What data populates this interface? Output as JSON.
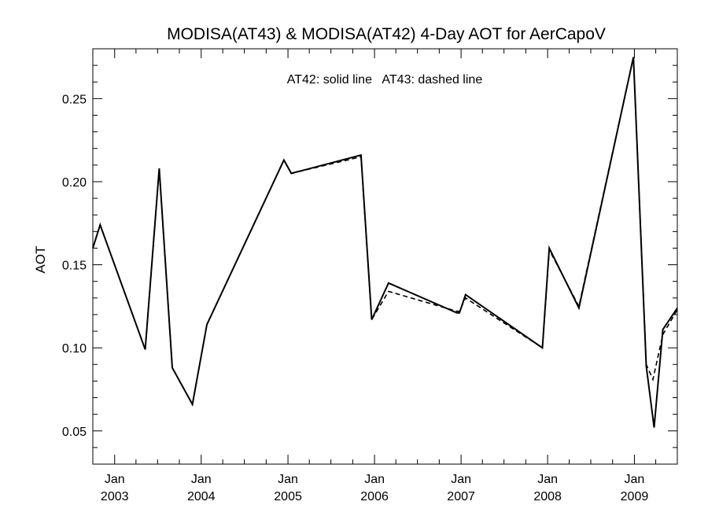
{
  "chart_data": {
    "type": "line",
    "title": "MODISA(AT43) & MODISA(AT42) 4-Day AOT for AerCapoV",
    "annotation": "AT42: solid line   AT43: dashed line",
    "ylabel": "AOT",
    "xlabel": "",
    "xlim": [
      "2002-10-01",
      "2009-07-01"
    ],
    "ylim": [
      0.03,
      0.28
    ],
    "yticks": [
      0.05,
      0.1,
      0.15,
      0.2,
      0.25
    ],
    "ytick_labels": [
      "0.05",
      "0.10",
      "0.15",
      "0.20",
      "0.25"
    ],
    "xticks": [
      {
        "date": "2003-01-01",
        "month": "Jan",
        "year": "2003"
      },
      {
        "date": "2004-01-01",
        "month": "Jan",
        "year": "2004"
      },
      {
        "date": "2005-01-01",
        "month": "Jan",
        "year": "2005"
      },
      {
        "date": "2006-01-01",
        "month": "Jan",
        "year": "2006"
      },
      {
        "date": "2007-01-01",
        "month": "Jan",
        "year": "2007"
      },
      {
        "date": "2008-01-01",
        "month": "Jan",
        "year": "2008"
      },
      {
        "date": "2009-01-01",
        "month": "Jan",
        "year": "2009"
      }
    ],
    "series": [
      {
        "name": "AT42",
        "style": "solid",
        "color": "#000000",
        "points": [
          [
            "2002-10-01",
            0.16
          ],
          [
            "2002-11-01",
            0.174
          ],
          [
            "2003-05-10",
            0.099
          ],
          [
            "2003-07-08",
            0.208
          ],
          [
            "2003-09-01",
            0.088
          ],
          [
            "2003-11-25",
            0.066
          ],
          [
            "2004-01-25",
            0.114
          ],
          [
            "2004-12-15",
            0.213
          ],
          [
            "2005-01-15",
            0.205
          ],
          [
            "2005-11-05",
            0.216
          ],
          [
            "2005-12-20",
            0.117
          ],
          [
            "2006-03-01",
            0.139
          ],
          [
            "2006-12-15",
            0.121
          ],
          [
            "2006-12-25",
            0.121
          ],
          [
            "2007-01-20",
            0.132
          ],
          [
            "2007-12-10",
            0.1
          ],
          [
            "2008-01-08",
            0.16
          ],
          [
            "2008-05-12",
            0.124
          ],
          [
            "2008-12-28",
            0.275
          ],
          [
            "2009-02-20",
            0.089
          ],
          [
            "2009-03-25",
            0.052
          ],
          [
            "2009-05-01",
            0.111
          ],
          [
            "2009-07-01",
            0.124
          ]
        ]
      },
      {
        "name": "AT43",
        "style": "dashed",
        "color": "#000000",
        "points": [
          [
            "2002-10-01",
            0.16
          ],
          [
            "2002-11-01",
            0.174
          ],
          [
            "2003-05-10",
            0.099
          ],
          [
            "2003-07-08",
            0.208
          ],
          [
            "2003-09-01",
            0.088
          ],
          [
            "2003-11-25",
            0.066
          ],
          [
            "2004-01-25",
            0.114
          ],
          [
            "2004-12-15",
            0.213
          ],
          [
            "2005-01-15",
            0.205
          ],
          [
            "2005-11-05",
            0.215
          ],
          [
            "2005-12-20",
            0.117
          ],
          [
            "2006-03-01",
            0.134
          ],
          [
            "2006-12-15",
            0.122
          ],
          [
            "2006-12-25",
            0.122
          ],
          [
            "2007-01-20",
            0.13
          ],
          [
            "2007-12-10",
            0.1
          ],
          [
            "2008-01-08",
            0.159
          ],
          [
            "2008-05-12",
            0.125
          ],
          [
            "2008-12-28",
            0.275
          ],
          [
            "2009-02-20",
            0.09
          ],
          [
            "2009-03-20",
            0.081
          ],
          [
            "2009-05-01",
            0.108
          ],
          [
            "2009-07-01",
            0.123
          ]
        ]
      }
    ],
    "grid": false,
    "legend": "none (annotation at top-center)"
  }
}
